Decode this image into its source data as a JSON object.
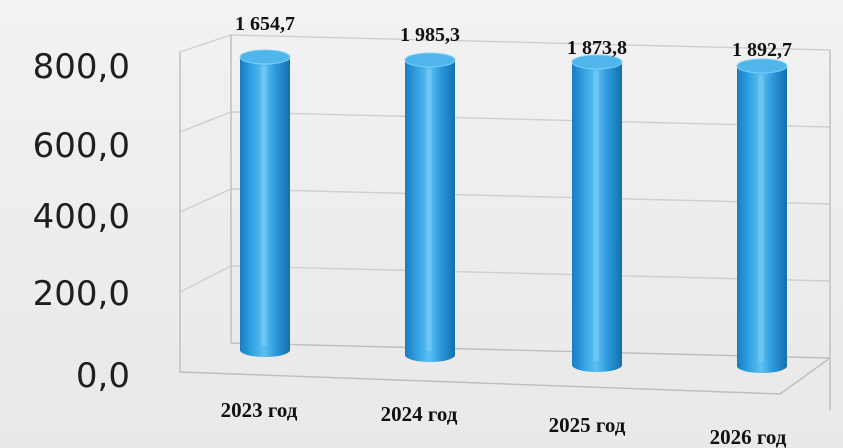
{
  "chart_data": {
    "type": "bar",
    "style": "3d-cylinder",
    "categories": [
      "2023 год",
      "2024 год",
      "2025 год",
      "2026 год"
    ],
    "values": [
      1654.7,
      1985.3,
      1873.8,
      1892.7
    ],
    "data_labels": [
      "1 654,7",
      "1 985,3",
      "1 873,8",
      "1 892,7"
    ],
    "yticks": [
      "0,0",
      "200,0",
      "400,0",
      "600,0",
      "800,0"
    ],
    "ytick_values": [
      0,
      200,
      400,
      600,
      800
    ],
    "ylim": [
      0,
      800
    ],
    "grid": true,
    "legend": "none",
    "title": "",
    "xlabel": "",
    "ylabel": "",
    "colors": {
      "bar": "#2ea3e0",
      "bar_dark": "#1372b3",
      "bar_light": "#7fd0f7",
      "top": "#4fb5ea"
    }
  }
}
